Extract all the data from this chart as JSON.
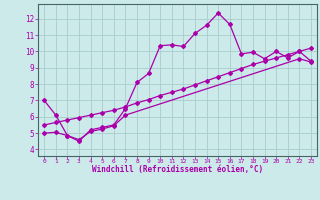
{
  "bg_color": "#cceaea",
  "grid_color": "#aacccc",
  "line_color": "#aa00aa",
  "marker": "D",
  "markersize": 2.0,
  "linewidth": 0.9,
  "xlabel": "Windchill (Refroidissement éolien,°C)",
  "xlabel_fontsize": 5.5,
  "ytick_fontsize": 5.5,
  "xtick_fontsize": 4.5,
  "ylabel_ticks": [
    4,
    5,
    6,
    7,
    8,
    9,
    10,
    11,
    12
  ],
  "xlim": [
    -0.5,
    23.5
  ],
  "ylim": [
    3.6,
    12.9
  ],
  "xtick_labels": [
    "0",
    "1",
    "2",
    "3",
    "4",
    "5",
    "6",
    "7",
    "8",
    "9",
    "10",
    "11",
    "12",
    "13",
    "14",
    "15",
    "16",
    "17",
    "18",
    "19",
    "20",
    "21",
    "22",
    "23"
  ],
  "series1_x": [
    0,
    1,
    2,
    3,
    4,
    5,
    6,
    7,
    8,
    9,
    10,
    11,
    12,
    13,
    14,
    15,
    16,
    17,
    18,
    19,
    20,
    21,
    22,
    23
  ],
  "series1_y": [
    7.0,
    6.1,
    4.85,
    4.5,
    5.2,
    5.35,
    5.5,
    6.5,
    8.1,
    8.65,
    10.35,
    10.4,
    10.3,
    11.1,
    11.6,
    12.35,
    11.65,
    9.85,
    9.95,
    9.55,
    10.0,
    9.6,
    10.0,
    9.4
  ],
  "series2_x": [
    0,
    1,
    2,
    3,
    4,
    5,
    6,
    7,
    22,
    23
  ],
  "series2_y": [
    5.0,
    5.05,
    4.85,
    4.6,
    5.1,
    5.25,
    5.45,
    6.1,
    9.55,
    9.35
  ],
  "series3_x": [
    0,
    1,
    2,
    3,
    4,
    5,
    6,
    7,
    8,
    9,
    10,
    11,
    12,
    13,
    14,
    15,
    16,
    17,
    18,
    19,
    20,
    21,
    22,
    23
  ],
  "series3_y": [
    5.5,
    5.65,
    5.8,
    5.95,
    6.1,
    6.25,
    6.4,
    6.6,
    6.85,
    7.05,
    7.3,
    7.5,
    7.7,
    7.95,
    8.2,
    8.45,
    8.7,
    8.95,
    9.2,
    9.4,
    9.6,
    9.8,
    10.0,
    10.2
  ]
}
